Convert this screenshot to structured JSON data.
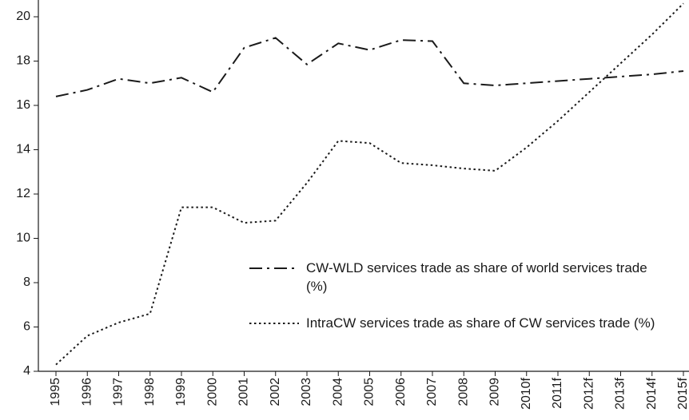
{
  "chart_data": {
    "type": "line",
    "categories": [
      "1995",
      "1996",
      "1997",
      "1998",
      "1999",
      "2000",
      "2001",
      "2002",
      "2003",
      "2004",
      "2005",
      "2006",
      "2007",
      "2008",
      "2009",
      "2010f",
      "2011f",
      "2012f",
      "2013f",
      "2014f",
      "2015f"
    ],
    "series": [
      {
        "name": "CW-WLD services trade as share of world services trade (%)",
        "color": "#1a1a1a",
        "dash": "dash-dot",
        "values": [
          16.4,
          16.7,
          17.2,
          17.0,
          17.25,
          16.6,
          18.6,
          19.05,
          17.85,
          18.8,
          18.5,
          18.95,
          18.9,
          17.0,
          16.9,
          17.0,
          17.1,
          17.2,
          17.3,
          17.4,
          17.55
        ]
      },
      {
        "name": "IntraCW services trade as share of CW services trade (%)",
        "color": "#1a1a1a",
        "dash": "dotted",
        "values": [
          4.3,
          5.6,
          6.2,
          6.6,
          11.4,
          11.4,
          10.7,
          10.8,
          12.5,
          14.4,
          14.3,
          13.4,
          13.3,
          13.15,
          13.05,
          14.1,
          15.3,
          16.6,
          17.9,
          19.2,
          20.6
        ]
      }
    ],
    "ylim": [
      4,
      20
    ],
    "yticks": [
      4,
      6,
      8,
      10,
      12,
      14,
      16,
      18,
      20
    ],
    "grid": false
  }
}
